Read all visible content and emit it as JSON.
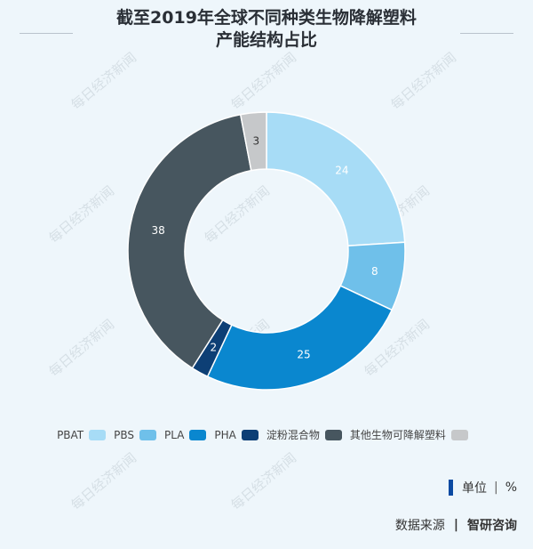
{
  "title_line1": "截至2019年全球不同种类生物降解塑料",
  "title_line2": "产能结构占比",
  "unit": {
    "label": "单位",
    "symbol": "%"
  },
  "source": {
    "label": "数据来源",
    "org": "智研咨询"
  },
  "watermark": "每日经济新闻",
  "colors": {
    "PBAT": "#a7dcf6",
    "PBS": "#6fc0ea",
    "PLA": "#0a87cf",
    "PHA": "#0d3f75",
    "starch": "#47565f",
    "other": "#c6c8ca",
    "background": "#eef6fb"
  },
  "chart_data": {
    "type": "pie",
    "donut": true,
    "start": "top, clockwise",
    "legend_position": "bottom",
    "slices": [
      {
        "value": 24,
        "color": "#a7dcf6",
        "label_color": "#ffffff"
      },
      {
        "value": 8,
        "color": "#6fc0ea",
        "label_color": "#ffffff"
      },
      {
        "value": 25,
        "color": "#0a87cf",
        "label_color": "#ffffff"
      },
      {
        "value": 2,
        "color": "#0d3f75",
        "label_color": "#ffffff"
      },
      {
        "value": 38,
        "color": "#47565f",
        "label_color": "#ffffff"
      },
      {
        "value": 3,
        "color": "#c6c8ca",
        "label_color": "#333333"
      }
    ],
    "legend": [
      {
        "name": "PBAT",
        "color": "#a7dcf6"
      },
      {
        "name": "PBS",
        "color": "#6fc0ea"
      },
      {
        "name": "PLA",
        "color": "#0a87cf"
      },
      {
        "name": "PHA",
        "color": "#0d3f75"
      },
      {
        "name": "淀粉混合物",
        "color": "#47565f"
      },
      {
        "name": "其他生物可降解塑料",
        "color": "#c6c8ca"
      }
    ]
  }
}
